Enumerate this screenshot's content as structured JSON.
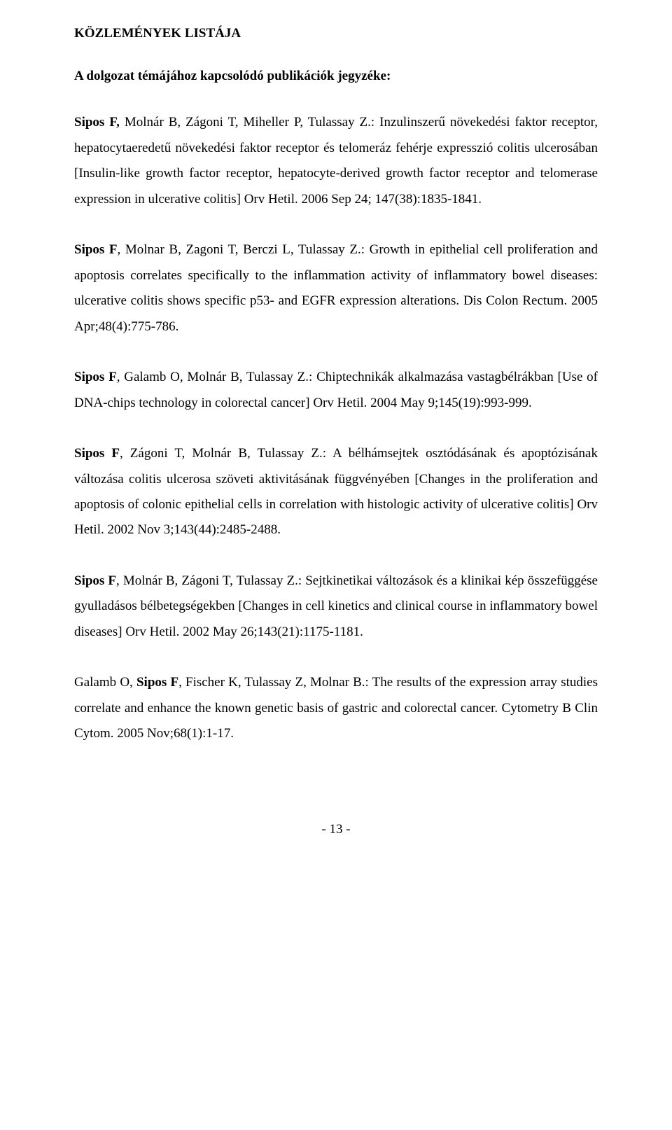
{
  "heading": "KÖZLEMÉNYEK LISTÁJA",
  "subheading": "A dolgozat témájához kapcsolódó publikációk jegyzéke:",
  "entries": [
    {
      "lead": "Sipos F, ",
      "rest": "Molnár B, Zágoni T, Miheller P, Tulassay Z.: Inzulinszerű növekedési faktor receptor, hepatocytaeredetű növekedési faktor receptor és telomeráz fehérje expresszió colitis ulcerosában [Insulin-like growth factor receptor, hepatocyte-derived growth factor receptor and telomerase expression in ulcerative colitis] Orv Hetil. 2006 Sep 24; 147(38):1835-1841."
    },
    {
      "lead": "Sipos F",
      "rest": ", Molnar B, Zagoni T, Berczi L, Tulassay Z.: Growth in epithelial cell proliferation and apoptosis correlates specifically to the inflammation activity of inflammatory bowel diseases: ulcerative colitis shows specific p53- and EGFR expression alterations. Dis Colon Rectum. 2005 Apr;48(4):775-786."
    },
    {
      "lead": "Sipos F",
      "rest": ", Galamb O, Molnár B, Tulassay Z.: Chiptechnikák alkalmazása vastagbélrákban [Use of DNA-chips technology in colorectal cancer] Orv Hetil. 2004 May 9;145(19):993-999."
    },
    {
      "lead": "Sipos F",
      "rest": ", Zágoni T, Molnár B, Tulassay Z.: A bélhámsejtek osztódásának és apoptózisának változása colitis ulcerosa szöveti aktivitásának függvényében [Changes in the proliferation and apoptosis of colonic epithelial cells in correlation with histologic activity of ulcerative colitis] Orv Hetil. 2002 Nov 3;143(44):2485-2488."
    },
    {
      "lead": "Sipos F",
      "rest": ", Molnár B, Zágoni T, Tulassay Z.: Sejtkinetikai változások és a klinikai kép összefüggése gyulladásos bélbetegségekben [Changes in cell kinetics and clinical course in inflammatory bowel diseases] Orv Hetil. 2002 May 26;143(21):1175-1181."
    },
    {
      "lead": "",
      "rest_pre": "Galamb O, ",
      "bold_inner": "Sipos F",
      "rest": ", Fischer K, Tulassay Z, Molnar B.: The results of the expression array studies correlate and enhance the known genetic basis of gastric and colorectal cancer. Cytometry B Clin Cytom. 2005 Nov;68(1):1-17."
    }
  ],
  "pagenum": "- 13 -"
}
